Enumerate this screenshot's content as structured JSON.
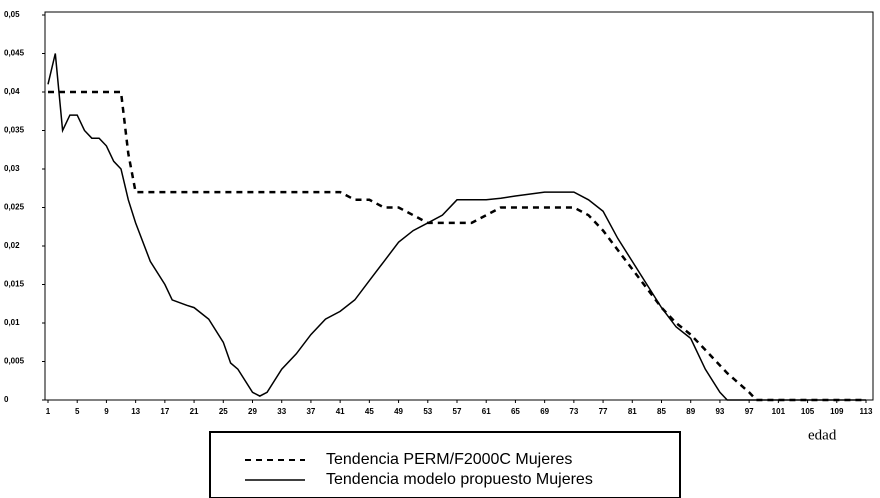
{
  "chart_data": {
    "type": "line",
    "x_label": "edad",
    "x": [
      1,
      2,
      3,
      4,
      5,
      6,
      7,
      8,
      9,
      10,
      11,
      12,
      13,
      15,
      17,
      18,
      20,
      21,
      23,
      25,
      26,
      27,
      29,
      30,
      31,
      33,
      35,
      37,
      39,
      41,
      43,
      45,
      47,
      49,
      51,
      53,
      55,
      57,
      59,
      61,
      63,
      65,
      69,
      73,
      75,
      77,
      79,
      81,
      83,
      85,
      87,
      89,
      91,
      93,
      94,
      97,
      98,
      101,
      113
    ],
    "series": [
      {
        "name": "Tendencia PERM/F2000C Mujeres",
        "color": "#000000",
        "dash": true,
        "values": [
          0.04,
          0.04,
          0.04,
          0.04,
          0.04,
          0.04,
          0.04,
          0.04,
          0.04,
          0.04,
          0.04,
          0.032,
          0.027,
          0.027,
          0.027,
          0.027,
          0.027,
          0.027,
          0.027,
          0.027,
          0.027,
          0.027,
          0.027,
          0.027,
          0.027,
          0.027,
          0.027,
          0.027,
          0.027,
          0.027,
          0.026,
          0.026,
          0.025,
          0.025,
          0.024,
          0.023,
          0.023,
          0.023,
          0.023,
          0.024,
          0.025,
          0.025,
          0.025,
          0.025,
          0.024,
          0.022,
          0.0195,
          0.017,
          0.0145,
          0.012,
          0.01,
          0.0085,
          0.0065,
          0.0045,
          0.0035,
          0.001,
          0,
          0,
          0
        ]
      },
      {
        "name": "Tendencia modelo propuesto Mujeres",
        "color": "#000000",
        "dash": false,
        "values": [
          0.041,
          0.045,
          0.035,
          0.037,
          0.037,
          0.035,
          0.034,
          0.034,
          0.033,
          0.031,
          0.03,
          0.026,
          0.023,
          0.018,
          0.015,
          0.013,
          0.0123,
          0.012,
          0.0105,
          0.0075,
          0.0048,
          0.004,
          0.001,
          0.0005,
          0.001,
          0.004,
          0.006,
          0.0085,
          0.0105,
          0.0115,
          0.013,
          0.0155,
          0.018,
          0.0205,
          0.022,
          0.023,
          0.024,
          0.026,
          0.026,
          0.026,
          0.0262,
          0.0265,
          0.027,
          0.027,
          0.026,
          0.0245,
          0.021,
          0.018,
          0.015,
          0.012,
          0.0095,
          0.008,
          0.004,
          0.001,
          0,
          0,
          0,
          0,
          0
        ]
      }
    ],
    "xlim": [
      1,
      113
    ],
    "xticks": [
      1,
      5,
      9,
      13,
      17,
      21,
      25,
      29,
      33,
      37,
      41,
      45,
      49,
      53,
      57,
      61,
      65,
      69,
      73,
      77,
      81,
      85,
      89,
      93,
      97,
      101,
      105,
      109,
      113
    ],
    "ylim": [
      0,
      0.05
    ],
    "yticks": [
      0,
      {
        "value": 0.005,
        "label": "0,005"
      },
      {
        "value": 0.01,
        "label": "0,01"
      },
      {
        "value": 0.015,
        "label": "0,015"
      },
      {
        "value": 0.02,
        "label": "0,02"
      },
      {
        "value": 0.025,
        "label": "0,025"
      },
      {
        "value": 0.03,
        "label": "0,03"
      },
      {
        "value": 0.035,
        "label": "0,035"
      },
      {
        "value": 0.04,
        "label": "0,04"
      },
      {
        "value": 0.045,
        "label": "0,045"
      },
      {
        "value": 0.05,
        "label": "0,05"
      }
    ],
    "grid": false
  }
}
